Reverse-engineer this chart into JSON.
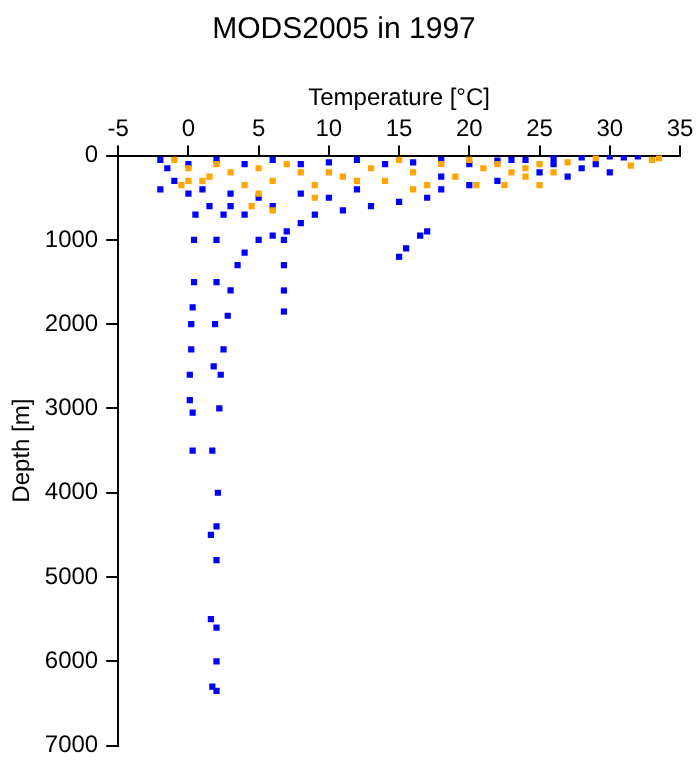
{
  "chart_data": {
    "type": "scatter",
    "title": "MODS2005 in 1997",
    "xlabel": "Temperature [°C]",
    "ylabel": "Depth [m]",
    "xlim": [
      -5,
      35
    ],
    "xticks": [
      -5,
      0,
      5,
      10,
      15,
      20,
      25,
      30,
      35
    ],
    "ylim": [
      7000,
      0
    ],
    "yticks": [
      0,
      1000,
      2000,
      3000,
      4000,
      5000,
      6000,
      7000
    ],
    "grid": false,
    "legend": false,
    "marker": "square",
    "series": [
      {
        "color": "#0000ff",
        "x": [
          -2,
          -1.5,
          -1,
          -2,
          0,
          0,
          2,
          4,
          6,
          8,
          10,
          12,
          14,
          16,
          18,
          20,
          22,
          24,
          26,
          28,
          30,
          31,
          32,
          29,
          28,
          27,
          25,
          22,
          20,
          18,
          17,
          15,
          13,
          11,
          9,
          8,
          7,
          6,
          5,
          4,
          3.5,
          3,
          2.8,
          2.5,
          2.3,
          2.2,
          2.1,
          2,
          2,
          2,
          2,
          2,
          1.7,
          1.6,
          1.6,
          1.7,
          1.8,
          1.9,
          2,
          2,
          2.5,
          3,
          4,
          6,
          10,
          12,
          8,
          5,
          3,
          1,
          1.5,
          0.5,
          0.4,
          0.4,
          0.3,
          0.2,
          0.2,
          0.1,
          0.1,
          0.3,
          0.3,
          6.8,
          6.8,
          6.8,
          6.8,
          15,
          15.5,
          16.5,
          17,
          30,
          18,
          23,
          26
        ],
        "values": [
          50,
          150,
          300,
          400,
          450,
          100,
          50,
          100,
          50,
          100,
          80,
          50,
          100,
          80,
          50,
          100,
          60,
          50,
          30,
          20,
          10,
          20,
          10,
          100,
          150,
          250,
          200,
          300,
          350,
          400,
          500,
          550,
          600,
          650,
          700,
          800,
          900,
          950,
          1000,
          1150,
          1300,
          1600,
          1900,
          2300,
          2600,
          3000,
          4000,
          4400,
          4800,
          5600,
          6000,
          6350,
          6300,
          5500,
          4500,
          3500,
          2500,
          2000,
          1500,
          1000,
          700,
          600,
          700,
          600,
          500,
          400,
          450,
          500,
          450,
          400,
          600,
          700,
          1000,
          1500,
          1800,
          2000,
          2300,
          2600,
          2900,
          3050,
          3500,
          1000,
          1300,
          1600,
          1850,
          1200,
          1100,
          950,
          900,
          200,
          250,
          50,
          100
        ]
      },
      {
        "color": "#ffa500",
        "x": [
          -1,
          0,
          0,
          1,
          1.5,
          2,
          3,
          4,
          5,
          5,
          6,
          7,
          8,
          9,
          10,
          11,
          12,
          13,
          14,
          15,
          16,
          17,
          18,
          19,
          20,
          21,
          22,
          23,
          24,
          25,
          26,
          27,
          24,
          29,
          31.5,
          33,
          33.5,
          22.5,
          25,
          4.5,
          6,
          20.5,
          9,
          16,
          -0.5
        ],
        "values": [
          50,
          150,
          300,
          300,
          250,
          100,
          200,
          350,
          150,
          450,
          300,
          100,
          200,
          350,
          200,
          250,
          300,
          150,
          300,
          50,
          200,
          350,
          100,
          250,
          50,
          150,
          100,
          200,
          150,
          100,
          200,
          80,
          250,
          30,
          120,
          50,
          30,
          350,
          350,
          600,
          650,
          350,
          500,
          400,
          350
        ]
      }
    ]
  }
}
